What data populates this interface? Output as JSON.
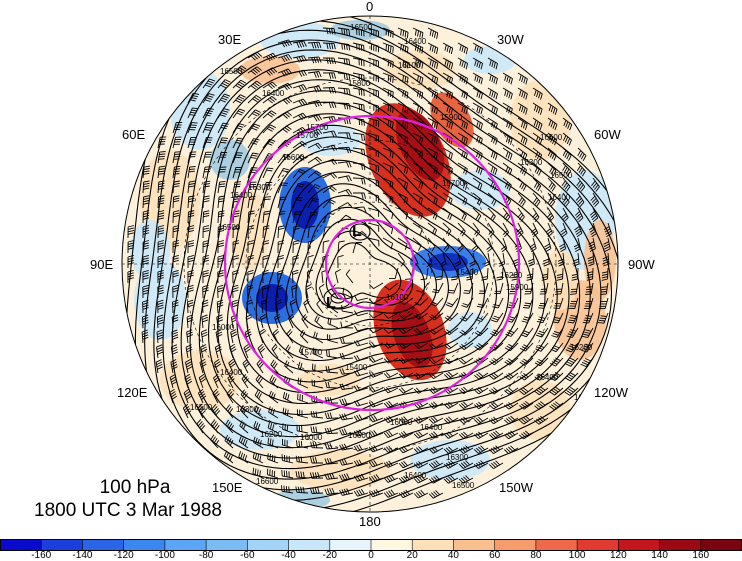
{
  "map": {
    "level": "100 hPa",
    "time": "1800 UTC 3 Mar 1988",
    "lon_labels": {
      "top": "0",
      "bottom": "180",
      "left": "90E",
      "right": "90W",
      "upper_left_1": "30E",
      "upper_left_2": "60E",
      "upper_right_1": "30W",
      "upper_right_2": "60W",
      "lower_left_1": "120E",
      "lower_left_2": "150E",
      "lower_right_1": "120W",
      "lower_right_2": "150W"
    },
    "contour_labels": [
      "16500",
      "16400",
      "16300",
      "16200",
      "16100",
      "15900",
      "15800",
      "15700",
      "15600",
      "15500",
      "15400",
      "16000",
      "16600",
      "15300",
      "16700"
    ],
    "center_markers": [
      "L",
      "L"
    ],
    "colors": {
      "positive_strong": "#a50f15",
      "positive_mid": "#ef3b2c",
      "positive_light": "#fcbba1",
      "negative_strong": "#08306b",
      "negative_mid": "#2171b5",
      "negative_light": "#9ecae1",
      "circle_color": "#e020e0"
    }
  },
  "colorbar": {
    "ticks": [
      "-160",
      "-140",
      "-120",
      "-100",
      "-80",
      "-60",
      "-40",
      "-20",
      "0",
      "20",
      "40",
      "60",
      "80",
      "100",
      "120",
      "140",
      "160"
    ],
    "colors": [
      "#0a0acd",
      "#1c3fdc",
      "#2a65e6",
      "#3c86ef",
      "#5aa5f5",
      "#7cbcf5",
      "#a3d4f8",
      "#c8e7fa",
      "#e6f5fb",
      "#fff7e0",
      "#fde0b8",
      "#f9c08e",
      "#f59d6a",
      "#ee6a4a",
      "#e03a32",
      "#c4161f",
      "#9a0a14",
      "#7a0510"
    ]
  }
}
